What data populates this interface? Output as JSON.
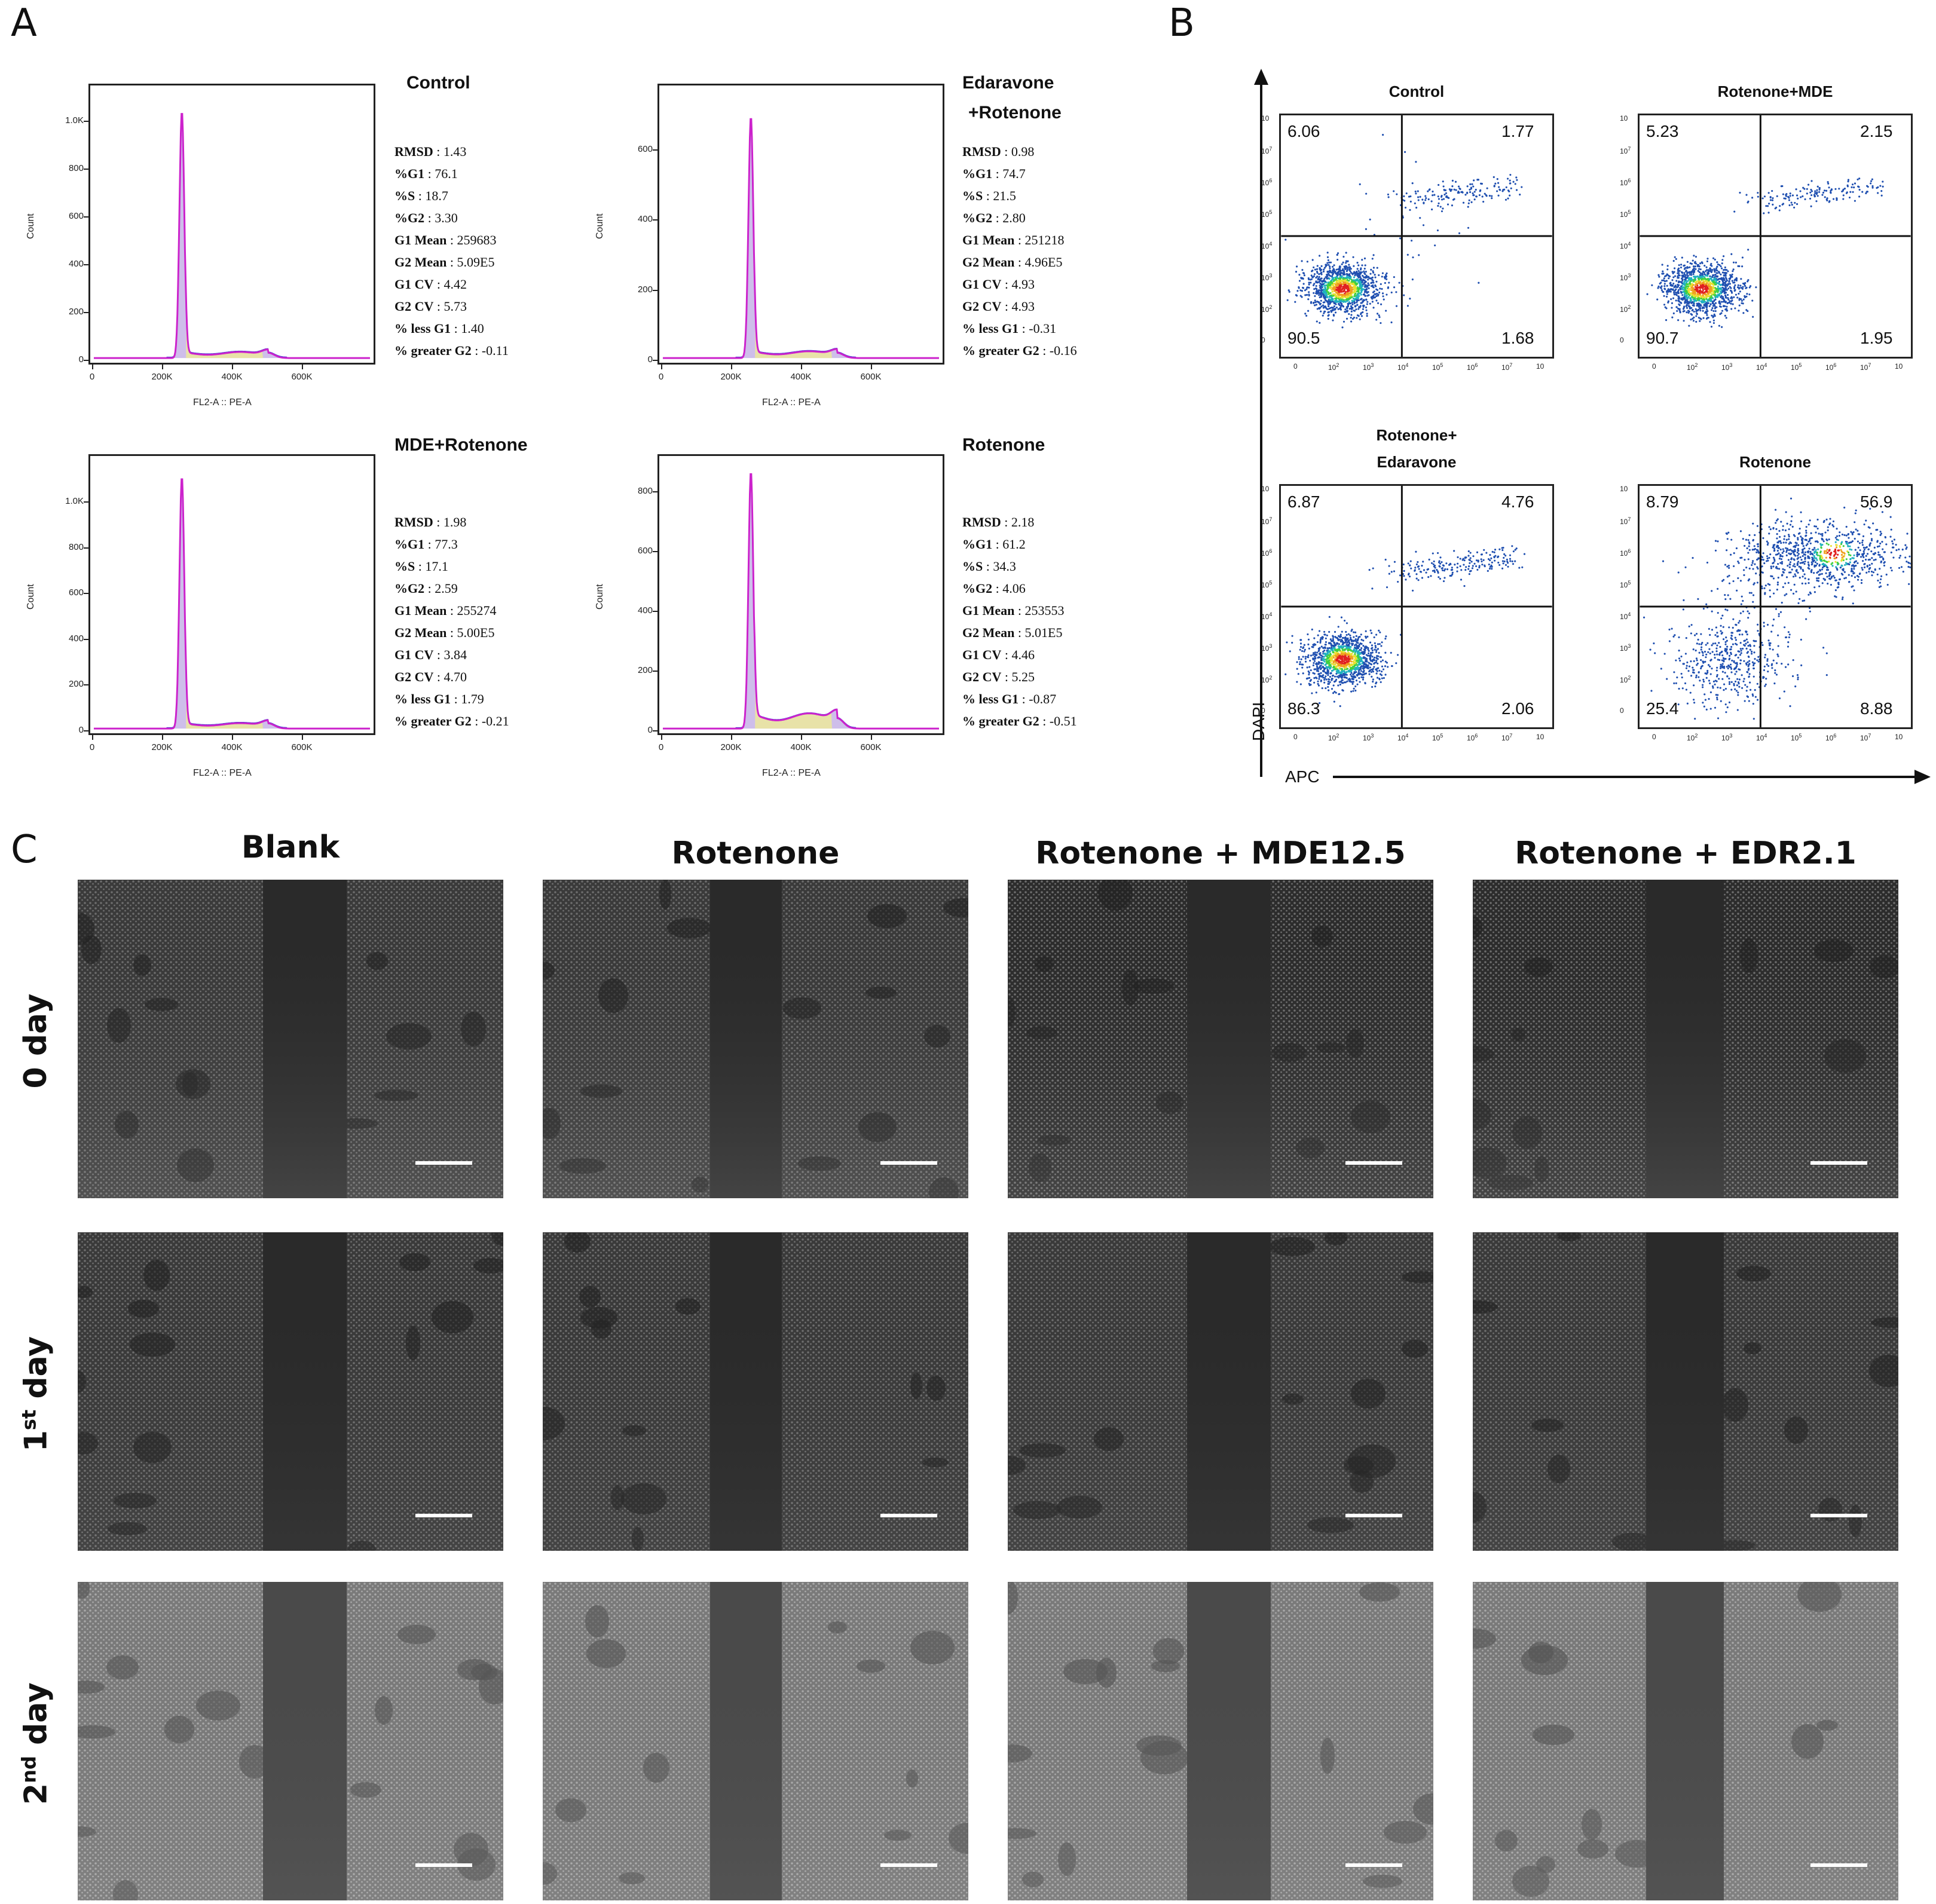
{
  "panel_labels": {
    "a": "A",
    "b": "B",
    "c": "C"
  },
  "chart_data": [
    {
      "panel": "A",
      "type": "area",
      "description": "Cell cycle flow cytometry histograms",
      "xlabel": "FL2-A :: PE-A",
      "ylabel": "Count",
      "xticks": [
        "0",
        "200K",
        "400K",
        "600K"
      ],
      "histograms": [
        {
          "title": "Control",
          "title_lines": [
            "Control"
          ],
          "yticks": [
            "0",
            "200",
            "400",
            "600",
            "800",
            "1.0K"
          ],
          "ylim": [
            0,
            1100
          ],
          "stats": [
            [
              "RMSD",
              "1.43"
            ],
            [
              "%G1",
              "76.1"
            ],
            [
              "%S",
              "18.7"
            ],
            [
              "%G2",
              "3.30"
            ],
            [
              "G1 Mean",
              "259683"
            ],
            [
              "G2 Mean",
              "5.09E5"
            ],
            [
              "G1 CV",
              "4.42"
            ],
            [
              "G2 CV",
              "5.73"
            ],
            [
              "% less G1",
              "1.40"
            ],
            [
              "% greater G2",
              "-0.11"
            ]
          ]
        },
        {
          "title": "Edaravone +Rotenone",
          "title_lines": [
            "Edaravone",
            "+Rotenone"
          ],
          "yticks": [
            "0",
            "200",
            "400",
            "600"
          ],
          "ylim": [
            0,
            750
          ],
          "stats": [
            [
              "RMSD",
              "0.98"
            ],
            [
              "%G1",
              "74.7"
            ],
            [
              "%S",
              "21.5"
            ],
            [
              "%G2",
              "2.80"
            ],
            [
              "G1 Mean",
              "251218"
            ],
            [
              "G2 Mean",
              "4.96E5"
            ],
            [
              "G1 CV",
              "4.93"
            ],
            [
              "G2 CV",
              "4.93"
            ],
            [
              "% less G1",
              "-0.31"
            ],
            [
              "% greater G2",
              "-0.16"
            ]
          ]
        },
        {
          "title": "MDE+Rotenone",
          "title_lines": [
            "MDE+Rotenone"
          ],
          "yticks": [
            "0",
            "200",
            "400",
            "600",
            "800",
            "1.0K"
          ],
          "ylim": [
            0,
            1150
          ],
          "stats": [
            [
              "RMSD",
              "1.98"
            ],
            [
              "%G1",
              "77.3"
            ],
            [
              "%S",
              "17.1"
            ],
            [
              "%G2",
              "2.59"
            ],
            [
              "G1 Mean",
              "255274"
            ],
            [
              "G2 Mean",
              "5.00E5"
            ],
            [
              "G1 CV",
              "3.84"
            ],
            [
              "G2 CV",
              "4.70"
            ],
            [
              "% less G1",
              "1.79"
            ],
            [
              "% greater G2",
              "-0.21"
            ]
          ]
        },
        {
          "title": "Rotenone",
          "title_lines": [
            "Rotenone"
          ],
          "yticks": [
            "0",
            "200",
            "400",
            "600",
            "800"
          ],
          "ylim": [
            0,
            880
          ],
          "stats": [
            [
              "RMSD",
              "2.18"
            ],
            [
              "%G1",
              "61.2"
            ],
            [
              "%S",
              "34.3"
            ],
            [
              "%G2",
              "4.06"
            ],
            [
              "G1 Mean",
              "253553"
            ],
            [
              "G2 Mean",
              "5.01E5"
            ],
            [
              "G1 CV",
              "4.46"
            ],
            [
              "G2 CV",
              "5.25"
            ],
            [
              "% less G1",
              "-0.87"
            ],
            [
              "% greater G2",
              "-0.51"
            ]
          ]
        }
      ]
    },
    {
      "panel": "B",
      "type": "scatter",
      "description": "Annexin V-APC / DAPI apoptosis dot plots, quadrant percentages",
      "xlabel": "APC",
      "ylabel": "DAPI",
      "ticks": [
        "0",
        "10",
        "10",
        "10",
        "10",
        "10",
        "10",
        "10"
      ],
      "tick_exps": [
        "",
        "2",
        "3",
        "4",
        "5",
        "6",
        "7",
        ""
      ],
      "plots": [
        {
          "title": "Control",
          "title_lines": [
            "Control"
          ],
          "upper_left": "6.06",
          "upper_right": "1.77",
          "lower_left": "90.5",
          "lower_right": "1.68"
        },
        {
          "title": "Rotenone+MDE",
          "title_lines": [
            "Rotenone+MDE"
          ],
          "upper_left": "5.23",
          "upper_right": "2.15",
          "lower_left": "90.7",
          "lower_right": "1.95"
        },
        {
          "title": "Rotenone+ Edaravone",
          "title_lines": [
            "Rotenone+",
            "Edaravone"
          ],
          "upper_left": "6.87",
          "upper_right": "4.76",
          "lower_left": "86.3",
          "lower_right": "2.06"
        },
        {
          "title": "Rotenone",
          "title_lines": [
            "Rotenone"
          ],
          "upper_left": "8.79",
          "upper_right": "56.9",
          "lower_left": "25.4",
          "lower_right": "8.88"
        }
      ]
    }
  ],
  "panel_c": {
    "columns": [
      "Blank",
      "Rotenone",
      "Rotenone + MDE12.5",
      "Rotenone + EDR2.1"
    ],
    "rows": [
      {
        "base": "0 day",
        "sup": "",
        "rest": ""
      },
      {
        "base": "1",
        "sup": "st",
        "rest": " day"
      },
      {
        "base": "2",
        "sup": "nd",
        "rest": " day"
      }
    ]
  }
}
